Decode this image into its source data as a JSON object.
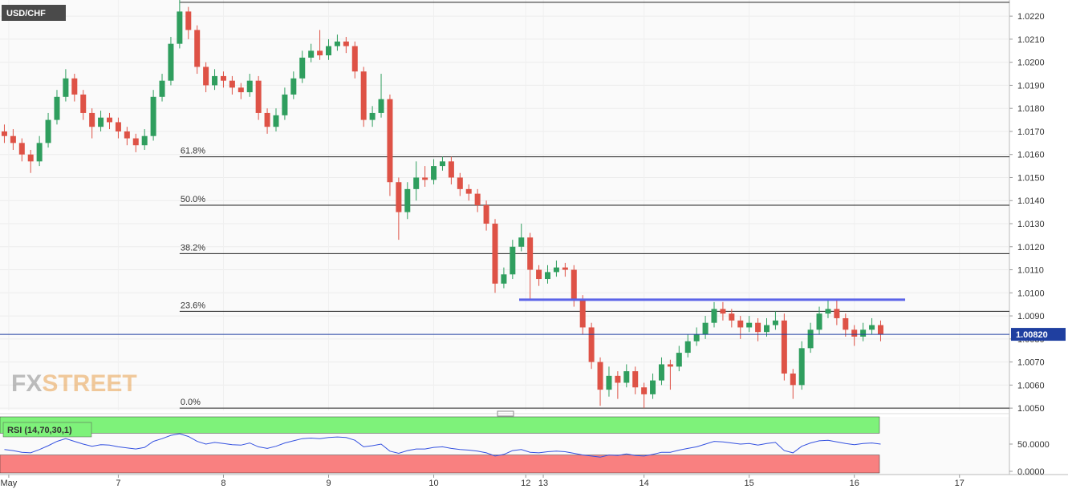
{
  "chart_data": {
    "type": "candlestick",
    "title": "USD/CHF",
    "watermark": [
      "FX",
      "STREET"
    ],
    "up_color": "#2f9e5e",
    "down_color": "#de5246",
    "x": [
      1,
      3,
      5,
      7,
      9,
      11,
      13,
      15,
      17,
      19,
      21,
      23,
      25,
      27,
      29,
      31,
      33,
      35,
      37,
      39,
      41,
      43,
      45,
      47,
      49,
      51,
      53,
      55,
      57,
      59,
      61,
      63,
      65,
      67,
      69,
      71,
      73,
      75,
      77,
      79,
      81,
      83,
      85,
      87,
      89,
      91,
      93,
      95,
      97,
      99,
      101,
      103,
      105,
      107,
      109,
      111,
      113,
      115,
      117,
      119,
      121,
      123,
      125,
      127,
      129,
      131,
      133,
      135,
      137,
      139,
      141,
      143,
      145,
      147,
      149,
      151,
      153,
      155,
      157,
      159,
      161,
      163,
      165,
      167,
      169,
      171,
      173,
      175,
      177,
      179,
      181,
      183,
      185,
      187,
      189,
      191,
      193,
      195,
      197,
      199,
      201
    ],
    "candles": [
      [
        1.017,
        1.0173,
        1.0165,
        1.0168
      ],
      [
        1.0168,
        1.0171,
        1.0162,
        1.0165
      ],
      [
        1.0165,
        1.0167,
        1.0157,
        1.016
      ],
      [
        1.016,
        1.0162,
        1.0152,
        1.0157
      ],
      [
        1.0157,
        1.0168,
        1.0155,
        1.0165
      ],
      [
        1.0165,
        1.0178,
        1.0163,
        1.0175
      ],
      [
        1.0175,
        1.0188,
        1.0173,
        1.0185
      ],
      [
        1.0185,
        1.0197,
        1.0183,
        1.0193
      ],
      [
        1.0193,
        1.0195,
        1.0183,
        1.0186
      ],
      [
        1.0186,
        1.0188,
        1.0175,
        1.0178
      ],
      [
        1.0178,
        1.018,
        1.0167,
        1.0172
      ],
      [
        1.0172,
        1.0179,
        1.017,
        1.0176
      ],
      [
        1.0176,
        1.0178,
        1.0171,
        1.0174
      ],
      [
        1.0174,
        1.0176,
        1.0167,
        1.017
      ],
      [
        1.017,
        1.0172,
        1.0164,
        1.0167
      ],
      [
        1.0167,
        1.0169,
        1.0161,
        1.0164
      ],
      [
        1.0164,
        1.0171,
        1.0162,
        1.0168
      ],
      [
        1.0168,
        1.0188,
        1.0166,
        1.0185
      ],
      [
        1.0185,
        1.0195,
        1.0183,
        1.0192
      ],
      [
        1.0192,
        1.0211,
        1.019,
        1.0208
      ],
      [
        1.0208,
        1.0227,
        1.0206,
        1.0222
      ],
      [
        1.0222,
        1.0224,
        1.021,
        1.0214
      ],
      [
        1.0214,
        1.0216,
        1.0195,
        1.0198
      ],
      [
        1.0198,
        1.02,
        1.0187,
        1.019
      ],
      [
        1.019,
        1.0197,
        1.0188,
        1.0194
      ],
      [
        1.0194,
        1.0196,
        1.0189,
        1.0192
      ],
      [
        1.0192,
        1.0194,
        1.0186,
        1.0189
      ],
      [
        1.0189,
        1.0191,
        1.0184,
        1.0187
      ],
      [
        1.0187,
        1.0195,
        1.0185,
        1.0192
      ],
      [
        1.0192,
        1.0194,
        1.0175,
        1.0178
      ],
      [
        1.0178,
        1.018,
        1.0169,
        1.0172
      ],
      [
        1.0172,
        1.018,
        1.017,
        1.0177
      ],
      [
        1.0177,
        1.0189,
        1.0175,
        1.0186
      ],
      [
        1.0186,
        1.0196,
        1.0184,
        1.0193
      ],
      [
        1.0193,
        1.0205,
        1.0191,
        1.0202
      ],
      [
        1.0202,
        1.0208,
        1.02,
        1.0205
      ],
      [
        1.0205,
        1.0214,
        1.0201,
        1.0203
      ],
      [
        1.0203,
        1.021,
        1.0201,
        1.0207
      ],
      [
        1.0207,
        1.0212,
        1.0205,
        1.0209
      ],
      [
        1.0209,
        1.0211,
        1.0204,
        1.0207
      ],
      [
        1.0207,
        1.0209,
        1.0193,
        1.0196
      ],
      [
        1.0196,
        1.0198,
        1.0172,
        1.0175
      ],
      [
        1.0175,
        1.0181,
        1.0172,
        1.0178
      ],
      [
        1.0178,
        1.0195,
        1.0176,
        1.0184
      ],
      [
        1.0184,
        1.0186,
        1.0142,
        1.0148
      ],
      [
        1.0148,
        1.015,
        1.0123,
        1.0135
      ],
      [
        1.0135,
        1.0148,
        1.0132,
        1.0145
      ],
      [
        1.0145,
        1.0157,
        1.014,
        1.015
      ],
      [
        1.015,
        1.0155,
        1.0146,
        1.0149
      ],
      [
        1.0149,
        1.0158,
        1.0147,
        1.0155
      ],
      [
        1.0155,
        1.0159,
        1.0153,
        1.0157
      ],
      [
        1.0157,
        1.0159,
        1.0147,
        1.015
      ],
      [
        1.015,
        1.0152,
        1.0142,
        1.0145
      ],
      [
        1.0145,
        1.0147,
        1.014,
        1.0143
      ],
      [
        1.0143,
        1.0145,
        1.0135,
        1.0138
      ],
      [
        1.0138,
        1.014,
        1.0127,
        1.013
      ],
      [
        1.013,
        1.0132,
        1.01,
        1.0104
      ],
      [
        1.0104,
        1.0111,
        1.0102,
        1.0108
      ],
      [
        1.0108,
        1.0123,
        1.0106,
        1.012
      ],
      [
        1.012,
        1.013,
        1.0118,
        1.0124
      ],
      [
        1.0124,
        1.0126,
        1.0097,
        1.011
      ],
      [
        1.011,
        1.0112,
        1.0103,
        1.0106
      ],
      [
        1.0106,
        1.0112,
        1.0104,
        1.0109
      ],
      [
        1.0109,
        1.0114,
        1.0107,
        1.0111
      ],
      [
        1.0111,
        1.0113,
        1.0107,
        1.011
      ],
      [
        1.011,
        1.0112,
        1.0094,
        1.0097
      ],
      [
        1.0097,
        1.0099,
        1.0082,
        1.0085
      ],
      [
        1.0085,
        1.0087,
        1.0067,
        1.007
      ],
      [
        1.007,
        1.0072,
        1.0051,
        1.0058
      ],
      [
        1.0058,
        1.0068,
        1.0055,
        1.0064
      ],
      [
        1.0064,
        1.0066,
        1.0054,
        1.0061
      ],
      [
        1.0061,
        1.0069,
        1.0059,
        1.0066
      ],
      [
        1.0066,
        1.0068,
        1.0056,
        1.0059
      ],
      [
        1.0059,
        1.0061,
        1.005,
        1.0056
      ],
      [
        1.0056,
        1.0065,
        1.0054,
        1.0062
      ],
      [
        1.0062,
        1.0072,
        1.006,
        1.0069
      ],
      [
        1.0069,
        1.0071,
        1.0058,
        1.0068
      ],
      [
        1.0068,
        1.0077,
        1.0066,
        1.0074
      ],
      [
        1.0074,
        1.0082,
        1.0072,
        1.0079
      ],
      [
        1.0079,
        1.0085,
        1.0077,
        1.0082
      ],
      [
        1.0082,
        1.009,
        1.008,
        1.0087
      ],
      [
        1.0087,
        1.0096,
        1.0085,
        1.0093
      ],
      [
        1.0093,
        1.0096,
        1.0088,
        1.0091
      ],
      [
        1.0091,
        1.0093,
        1.0085,
        1.0088
      ],
      [
        1.0088,
        1.009,
        1.008,
        1.0085
      ],
      [
        1.0085,
        1.009,
        1.0083,
        1.0087
      ],
      [
        1.0087,
        1.0089,
        1.0079,
        1.0083
      ],
      [
        1.0083,
        1.0089,
        1.0081,
        1.0086
      ],
      [
        1.0086,
        1.0092,
        1.0084,
        1.0088
      ],
      [
        1.0088,
        1.0091,
        1.0062,
        1.0065
      ],
      [
        1.0065,
        1.0067,
        1.0054,
        1.006
      ],
      [
        1.006,
        1.0079,
        1.0058,
        1.0076
      ],
      [
        1.0076,
        1.0087,
        1.0074,
        1.0084
      ],
      [
        1.0084,
        1.0094,
        1.0082,
        1.0091
      ],
      [
        1.0091,
        1.0097,
        1.0089,
        1.0093
      ],
      [
        1.0093,
        1.0097,
        1.0086,
        1.0089
      ],
      [
        1.0089,
        1.0091,
        1.0081,
        1.0084
      ],
      [
        1.0084,
        1.0086,
        1.0077,
        1.0081
      ],
      [
        1.0081,
        1.0087,
        1.0079,
        1.0084
      ],
      [
        1.0084,
        1.0089,
        1.0082,
        1.0086
      ],
      [
        1.0086,
        1.0088,
        1.0079,
        1.0082
      ]
    ],
    "xlim": [
      0,
      230.4
    ],
    "xticks": [
      {
        "value": 2,
        "label": "May"
      },
      {
        "value": 27,
        "label": "7"
      },
      {
        "value": 51,
        "label": "8"
      },
      {
        "value": 75,
        "label": "9"
      },
      {
        "value": 99,
        "label": "10"
      },
      {
        "value": 120,
        "label": "12"
      },
      {
        "value": 124,
        "label": "13"
      },
      {
        "value": 147,
        "label": "14"
      },
      {
        "value": 171,
        "label": "15"
      },
      {
        "value": 195,
        "label": "16"
      },
      {
        "value": 219,
        "label": "17"
      }
    ],
    "ylim": [
      1.0049,
      1.0227
    ],
    "yticks": [
      {
        "value": 1.005,
        "label": "1.0050"
      },
      {
        "value": 1.006,
        "label": "1.0060"
      },
      {
        "value": 1.007,
        "label": "1.0070"
      },
      {
        "value": 1.008,
        "label": "1.0080"
      },
      {
        "value": 1.009,
        "label": "1.0090"
      },
      {
        "value": 1.01,
        "label": "1.0100"
      },
      {
        "value": 1.011,
        "label": "1.0110"
      },
      {
        "value": 1.012,
        "label": "1.0120"
      },
      {
        "value": 1.013,
        "label": "1.0130"
      },
      {
        "value": 1.014,
        "label": "1.0140"
      },
      {
        "value": 1.015,
        "label": "1.0150"
      },
      {
        "value": 1.016,
        "label": "1.0160"
      },
      {
        "value": 1.017,
        "label": "1.0170"
      },
      {
        "value": 1.018,
        "label": "1.0180"
      },
      {
        "value": 1.019,
        "label": "1.0190"
      },
      {
        "value": 1.02,
        "label": "1.0200"
      },
      {
        "value": 1.021,
        "label": "1.0210"
      },
      {
        "value": 1.022,
        "label": "1.0220"
      }
    ],
    "grid": true,
    "fib_start": 41,
    "fib_levels": [
      {
        "value": 1.0226
      },
      {
        "value": 1.0159,
        "label": "61.8%"
      },
      {
        "value": 1.0138,
        "label": "50.0%"
      },
      {
        "value": 1.0117,
        "label": "38.2%"
      },
      {
        "value": 1.0092,
        "label": "23.6%"
      },
      {
        "value": 1.005,
        "label": "0.0%"
      }
    ],
    "trend_line": {
      "value": 1.0097,
      "x": [
        118.5,
        206.6
      ],
      "color": "#5b63e8"
    },
    "last_price": {
      "value": 1.0082,
      "label": "1.00820",
      "color": "#1f3fa0"
    },
    "rsi": {
      "label": "RSI (14,70,30,1)",
      "color": "#3552e0",
      "values": [
        40,
        38,
        35,
        34,
        40,
        47,
        55,
        60,
        55,
        50,
        46,
        49,
        48,
        45,
        43,
        41,
        44,
        55,
        60,
        66,
        69,
        64,
        55,
        50,
        53,
        51,
        49,
        48,
        52,
        45,
        42,
        46,
        52,
        56,
        60,
        61,
        60,
        62,
        63,
        62,
        57,
        45,
        47,
        50,
        37,
        33,
        38,
        41,
        41,
        44,
        45,
        42,
        40,
        39,
        37,
        34,
        28,
        31,
        38,
        40,
        35,
        34,
        36,
        37,
        36,
        33,
        30,
        28,
        26,
        30,
        29,
        32,
        29,
        28,
        31,
        35,
        35,
        39,
        42,
        45,
        50,
        55,
        54,
        52,
        50,
        51,
        48,
        51,
        53,
        38,
        34,
        46,
        52,
        56,
        57,
        54,
        51,
        49,
        51,
        52,
        50
      ],
      "ylim": [
        -3,
        100
      ],
      "overbought": 70,
      "oversold": 30,
      "top": 100,
      "yticks": [
        {
          "value": 50,
          "label": "50.0000"
        },
        {
          "value": 0,
          "label": "0.0000"
        }
      ]
    }
  }
}
